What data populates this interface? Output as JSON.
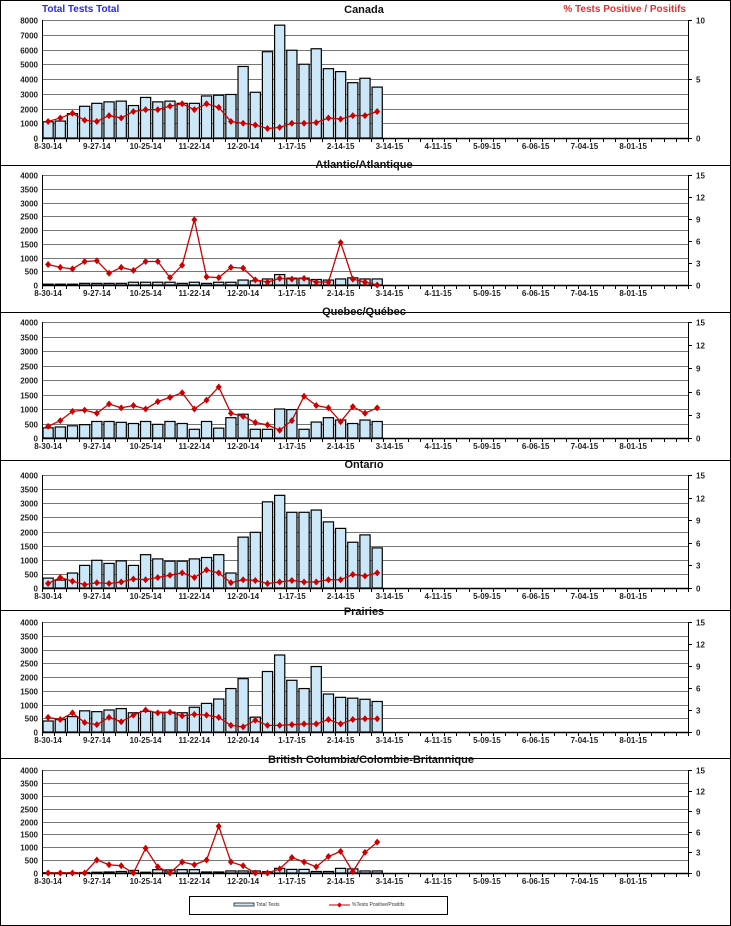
{
  "header": {
    "left_axis_title": "Total Tests  Total",
    "right_axis_title": "% Tests  Positive / Positifs"
  },
  "legend": {
    "bars_label": "Total Tests",
    "line_label": "%Tests Positive/Positifs"
  },
  "colors": {
    "bar_fill": "#cce8f8",
    "bar_stroke": "#000000",
    "line": "#cc0000",
    "left_title": "#2a2ae0",
    "right_title": "#e03030"
  },
  "x_tick_labels": [
    "8-30-14",
    "9-27-14",
    "10-25-14",
    "11-22-14",
    "12-20-14",
    "1-17-15",
    "2-14-15",
    "3-14-15",
    "4-11-15",
    "5-09-15",
    "6-06-15",
    "7-04-15",
    "8-01-15"
  ],
  "chart_data": [
    {
      "type": "bar+line",
      "title": "Canada",
      "categories": [
        "8-30-14",
        "9-06-14",
        "9-13-14",
        "9-20-14",
        "9-27-14",
        "10-04-14",
        "10-11-14",
        "10-18-14",
        "10-25-14",
        "11-01-14",
        "11-08-14",
        "11-15-14",
        "11-22-14",
        "11-29-14",
        "12-06-14",
        "12-13-14",
        "12-20-14",
        "12-27-14",
        "1-03-15",
        "1-10-15",
        "1-17-15",
        "1-24-15",
        "1-31-15",
        "2-07-15",
        "2-14-15",
        "2-21-15",
        "2-28-15",
        "3-07-15"
      ],
      "ylim": [
        0,
        8000
      ],
      "yticks": [
        0,
        1000,
        2000,
        3000,
        4000,
        5000,
        6000,
        7000,
        8000
      ],
      "y2lim": [
        0,
        10
      ],
      "y2ticks": [
        0,
        5,
        10
      ],
      "grid": true,
      "total_tests": [
        1100,
        1150,
        1650,
        2150,
        2350,
        2450,
        2500,
        2200,
        2750,
        2450,
        2500,
        2350,
        2350,
        2850,
        2900,
        2950,
        4850,
        3100,
        5850,
        7650,
        5950,
        5000,
        6050,
        4700,
        4500,
        3750,
        4050,
        3450
      ],
      "pct_positive": [
        1.4,
        1.7,
        2.1,
        1.5,
        1.4,
        1.9,
        1.7,
        2.25,
        2.4,
        2.4,
        2.7,
        2.9,
        2.4,
        2.9,
        2.6,
        1.4,
        1.25,
        1.1,
        0.8,
        0.9,
        1.25,
        1.25,
        1.3,
        1.7,
        1.6,
        1.9,
        1.9,
        2.25
      ]
    },
    {
      "type": "bar+line",
      "title": "Atlantic/Atlantique",
      "ylim": [
        0,
        4000
      ],
      "yticks": [
        0,
        500,
        1000,
        1500,
        2000,
        2500,
        3000,
        3500,
        4000
      ],
      "y2lim": [
        0,
        15
      ],
      "y2ticks": [
        0,
        3,
        6,
        9,
        12,
        15
      ],
      "grid": true,
      "total_tests": [
        30,
        30,
        30,
        60,
        60,
        60,
        60,
        100,
        100,
        100,
        100,
        60,
        100,
        60,
        100,
        100,
        180,
        150,
        220,
        380,
        250,
        250,
        200,
        180,
        220,
        260,
        220,
        220
      ],
      "pct_positive": [
        2.8,
        2.4,
        2.2,
        3.2,
        3.3,
        1.6,
        2.4,
        2.0,
        3.2,
        3.2,
        1.0,
        2.7,
        8.9,
        1.1,
        1.0,
        2.4,
        2.3,
        0.7,
        0.4,
        0.9,
        0.8,
        0.9,
        0.4,
        0.4,
        5.8,
        0.8,
        0.4,
        0
      ]
    },
    {
      "type": "bar+line",
      "title": "Quebec/Québec",
      "ylim": [
        0,
        4000
      ],
      "yticks": [
        0,
        500,
        1000,
        1500,
        2000,
        2500,
        3000,
        3500,
        4000
      ],
      "y2lim": [
        0,
        15
      ],
      "y2ticks": [
        0,
        3,
        6,
        9,
        12,
        15
      ],
      "grid": true,
      "total_tests": [
        350,
        380,
        420,
        460,
        570,
        570,
        540,
        500,
        570,
        470,
        570,
        500,
        300,
        570,
        340,
        700,
        820,
        300,
        300,
        1000,
        980,
        300,
        550,
        700,
        620,
        500,
        620,
        570
      ],
      "pct_positive": [
        1.5,
        2.25,
        3.45,
        3.6,
        3.2,
        4.4,
        3.9,
        4.2,
        3.75,
        4.7,
        5.25,
        5.85,
        3.75,
        4.9,
        6.6,
        3.2,
        2.8,
        2.0,
        1.7,
        1.0,
        2.25,
        5.4,
        4.2,
        3.9,
        2.1,
        4.05,
        3.2,
        3.9
      ]
    },
    {
      "type": "bar+line",
      "title": "Ontario",
      "ylim": [
        0,
        4000
      ],
      "yticks": [
        0,
        500,
        1000,
        1500,
        2000,
        2500,
        3000,
        3500,
        4000
      ],
      "y2lim": [
        0,
        15
      ],
      "y2ticks": [
        0,
        3,
        6,
        9,
        12,
        15
      ],
      "grid": true,
      "total_tests": [
        350,
        280,
        530,
        800,
        980,
        870,
        960,
        800,
        1180,
        1030,
        950,
        950,
        1030,
        1080,
        1180,
        530,
        1800,
        1970,
        3050,
        3280,
        2680,
        2680,
        2760,
        2340,
        2110,
        1620,
        1880,
        1420
      ],
      "pct_positive": [
        0.6,
        1.4,
        0.9,
        0.45,
        0.7,
        0.6,
        0.8,
        1.2,
        1.1,
        1.4,
        1.7,
        2.0,
        1.4,
        2.4,
        2.0,
        0.7,
        1.1,
        1.0,
        0.6,
        0.8,
        1.0,
        0.8,
        0.8,
        1.1,
        1.1,
        1.8,
        1.6,
        2.0
      ]
    },
    {
      "type": "bar+line",
      "title": "Prairies",
      "ylim": [
        0,
        4000
      ],
      "yticks": [
        0,
        500,
        1000,
        1500,
        2000,
        2500,
        3000,
        3500,
        4000
      ],
      "y2lim": [
        0,
        15
      ],
      "y2ticks": [
        0,
        3,
        6,
        9,
        12,
        15
      ],
      "grid": true,
      "total_tests": [
        400,
        450,
        560,
        770,
        740,
        800,
        850,
        700,
        750,
        720,
        720,
        700,
        900,
        1040,
        1200,
        1580,
        1940,
        540,
        2200,
        2800,
        1880,
        1580,
        2380,
        1380,
        1260,
        1230,
        1190,
        1110
      ],
      "pct_positive": [
        2.0,
        1.7,
        2.6,
        1.3,
        1.0,
        2.0,
        1.4,
        2.3,
        3.0,
        2.6,
        2.7,
        2.2,
        2.4,
        2.3,
        2.0,
        0.9,
        0.7,
        1.6,
        0.9,
        0.9,
        1.0,
        1.1,
        1.1,
        1.7,
        1.1,
        1.7,
        1.8,
        1.8
      ]
    },
    {
      "type": "bar+line",
      "title": "British Columbia/Colombie-Britannique",
      "ylim": [
        0,
        4000
      ],
      "yticks": [
        0,
        500,
        1000,
        1500,
        2000,
        2500,
        3000,
        3500,
        4000
      ],
      "y2lim": [
        0,
        15
      ],
      "y2ticks": [
        0,
        3,
        6,
        9,
        12,
        15
      ],
      "grid": true,
      "total_tests": [
        10,
        10,
        10,
        20,
        30,
        40,
        60,
        100,
        30,
        130,
        120,
        130,
        130,
        40,
        40,
        80,
        80,
        80,
        50,
        180,
        140,
        140,
        60,
        60,
        180,
        160,
        80,
        80
      ],
      "pct_positive": [
        0,
        0,
        0,
        0,
        1.9,
        1.2,
        1.05,
        0,
        3.6,
        0.9,
        0,
        1.6,
        1.2,
        1.9,
        6.8,
        1.6,
        1.05,
        0,
        0,
        0.6,
        2.25,
        1.6,
        0.9,
        2.4,
        3.15,
        0.2,
        3.0,
        4.5
      ]
    }
  ]
}
